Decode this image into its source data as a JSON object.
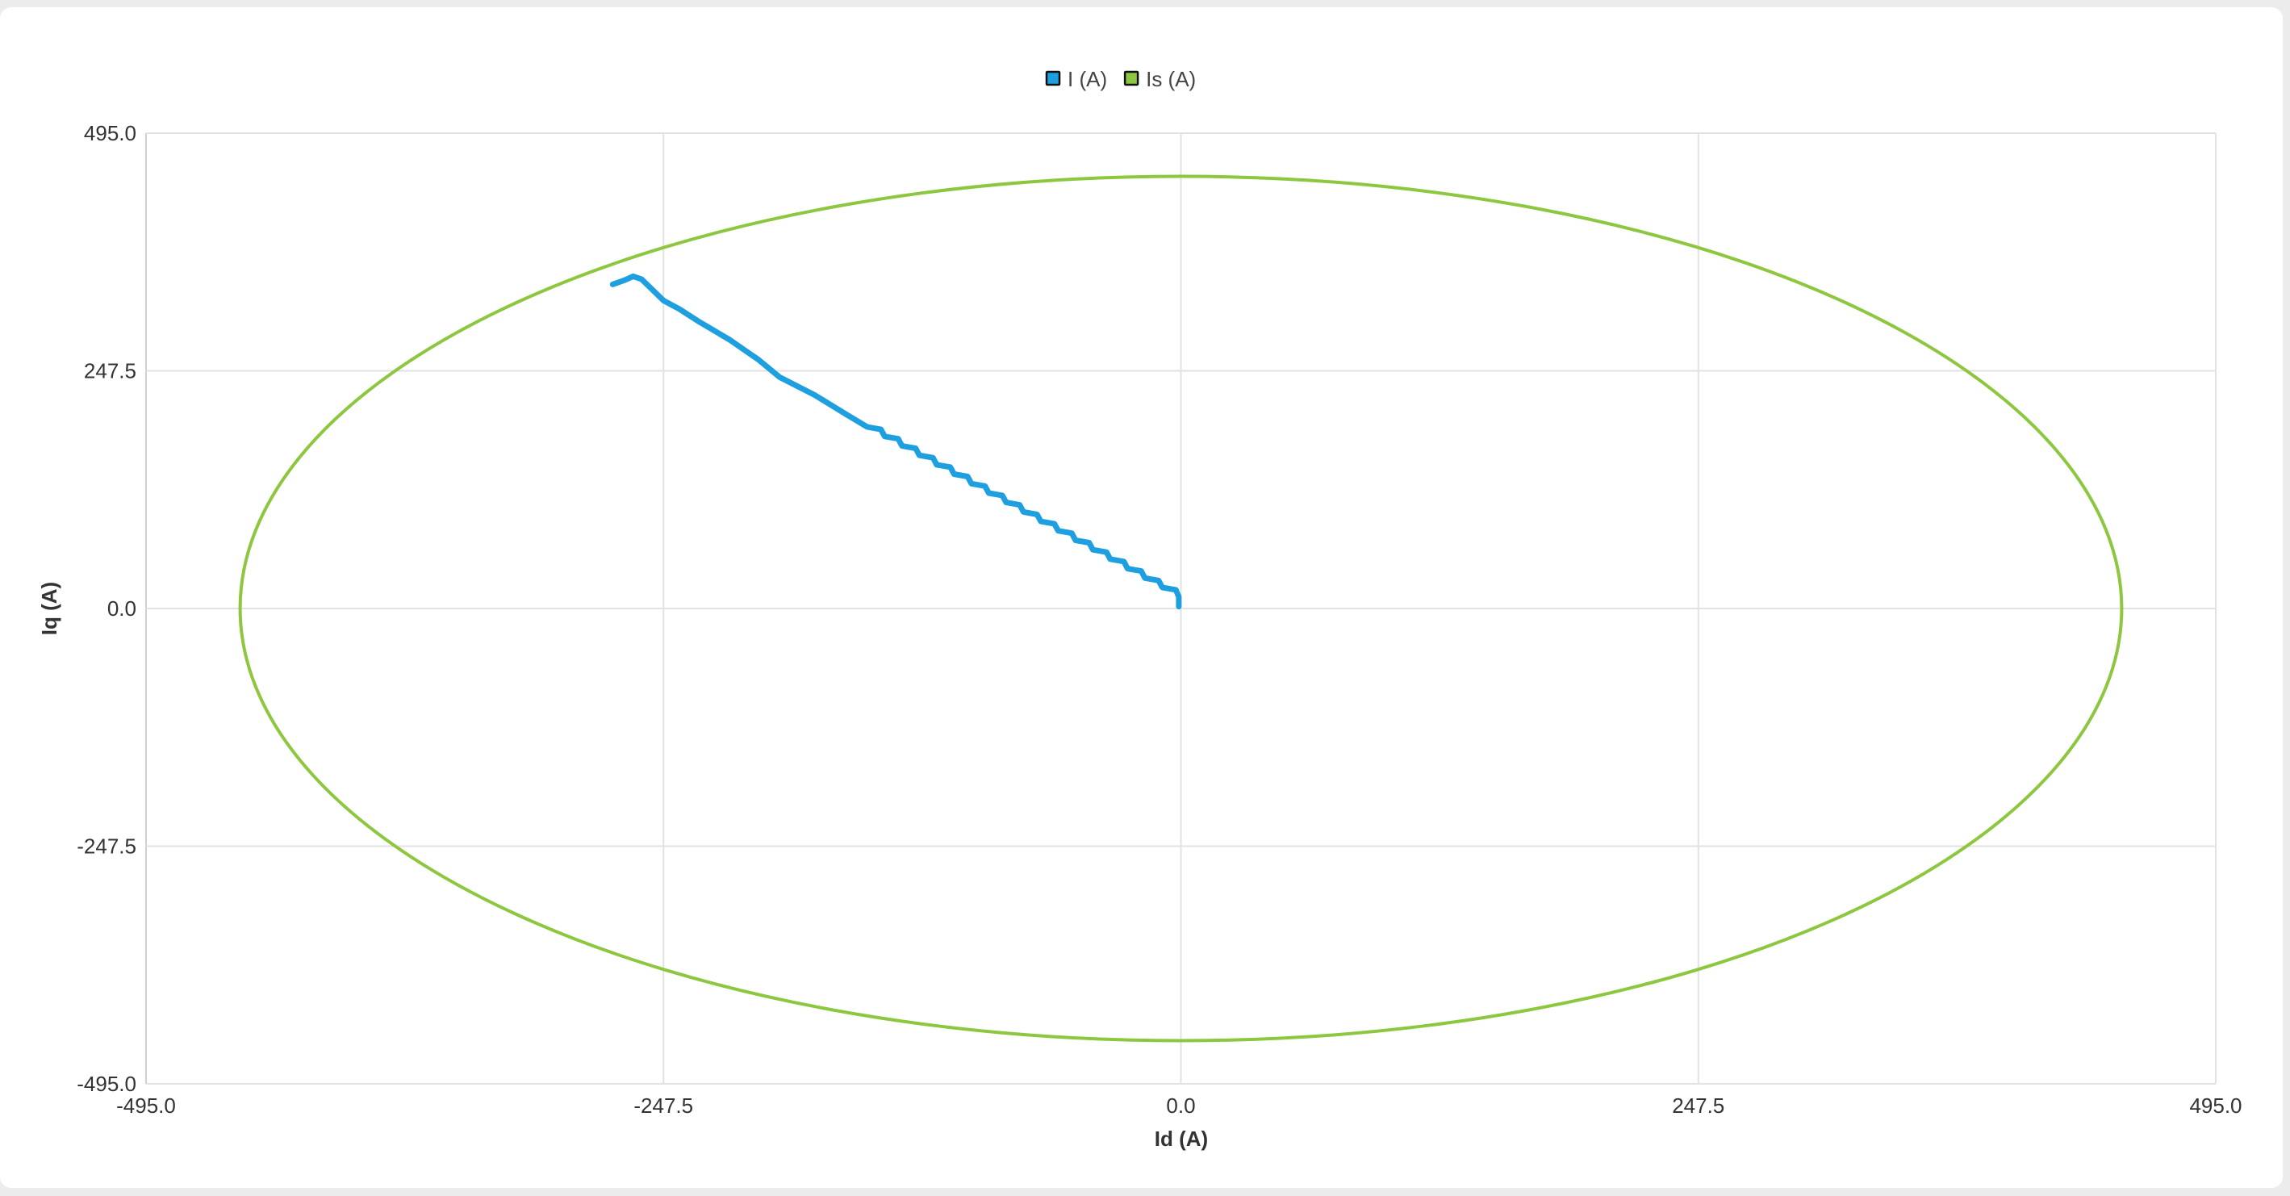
{
  "chart_data": {
    "type": "line",
    "title": "",
    "xlabel": "Id (A)",
    "ylabel": "Iq (A)",
    "xlim": [
      -495,
      495
    ],
    "ylim": [
      -495,
      495
    ],
    "xticks": [
      "-495.0",
      "-247.5",
      "0.0",
      "247.5",
      "495.0"
    ],
    "yticks": [
      "495.0",
      "247.5",
      "0.0",
      "-247.5",
      "-495.0"
    ],
    "grid": true,
    "legend_placement": "top-center",
    "series": [
      {
        "name": "I (A)",
        "color": "#1e9fe0",
        "points": [
          [
            -271.8,
            337.5
          ],
          [
            -266,
            342
          ],
          [
            -262,
            345.9
          ],
          [
            -258,
            343
          ],
          [
            -247.5,
            320.7
          ],
          [
            -240,
            312
          ],
          [
            -230,
            298
          ],
          [
            -216,
            280
          ],
          [
            -208,
            268
          ],
          [
            -202,
            259
          ],
          [
            -192,
            241
          ],
          [
            -175,
            222
          ],
          [
            -160,
            202
          ],
          [
            -150,
            189
          ],
          [
            -143.5,
            186.5
          ],
          [
            -141.7,
            179.2
          ],
          [
            -135.2,
            176.7
          ],
          [
            -133.4,
            169.3
          ],
          [
            -126.9,
            166.8
          ],
          [
            -125.1,
            159.5
          ],
          [
            -118.6,
            157
          ],
          [
            -116.8,
            149.7
          ],
          [
            -110.3,
            147.2
          ],
          [
            -108.5,
            139.9
          ],
          [
            -102,
            137.4
          ],
          [
            -100.2,
            130
          ],
          [
            -93.7,
            127.5
          ],
          [
            -91.9,
            120.2
          ],
          [
            -85.4,
            117.7
          ],
          [
            -83.6,
            110.4
          ],
          [
            -77.1,
            107.9
          ],
          [
            -75.3,
            100.5
          ],
          [
            -68.8,
            98
          ],
          [
            -67,
            90.7
          ],
          [
            -60.5,
            88.2
          ],
          [
            -58.7,
            80.9
          ],
          [
            -52.2,
            78.4
          ],
          [
            -50.4,
            71
          ],
          [
            -43.9,
            68.5
          ],
          [
            -42.1,
            61.2
          ],
          [
            -35.6,
            58.7
          ],
          [
            -33.8,
            51.4
          ],
          [
            -27.3,
            48.9
          ],
          [
            -25.5,
            41.5
          ],
          [
            -19,
            39
          ],
          [
            -17.2,
            31.7
          ],
          [
            -10.7,
            29.2
          ],
          [
            -8.9,
            21.9
          ],
          [
            -2.4,
            19.4
          ],
          [
            -1,
            12
          ],
          [
            -1,
            2
          ]
        ]
      },
      {
        "name": "Is (A)",
        "color": "#8dc63f",
        "shape": "circle",
        "center": [
          0,
          0
        ],
        "radius": 450
      }
    ]
  }
}
